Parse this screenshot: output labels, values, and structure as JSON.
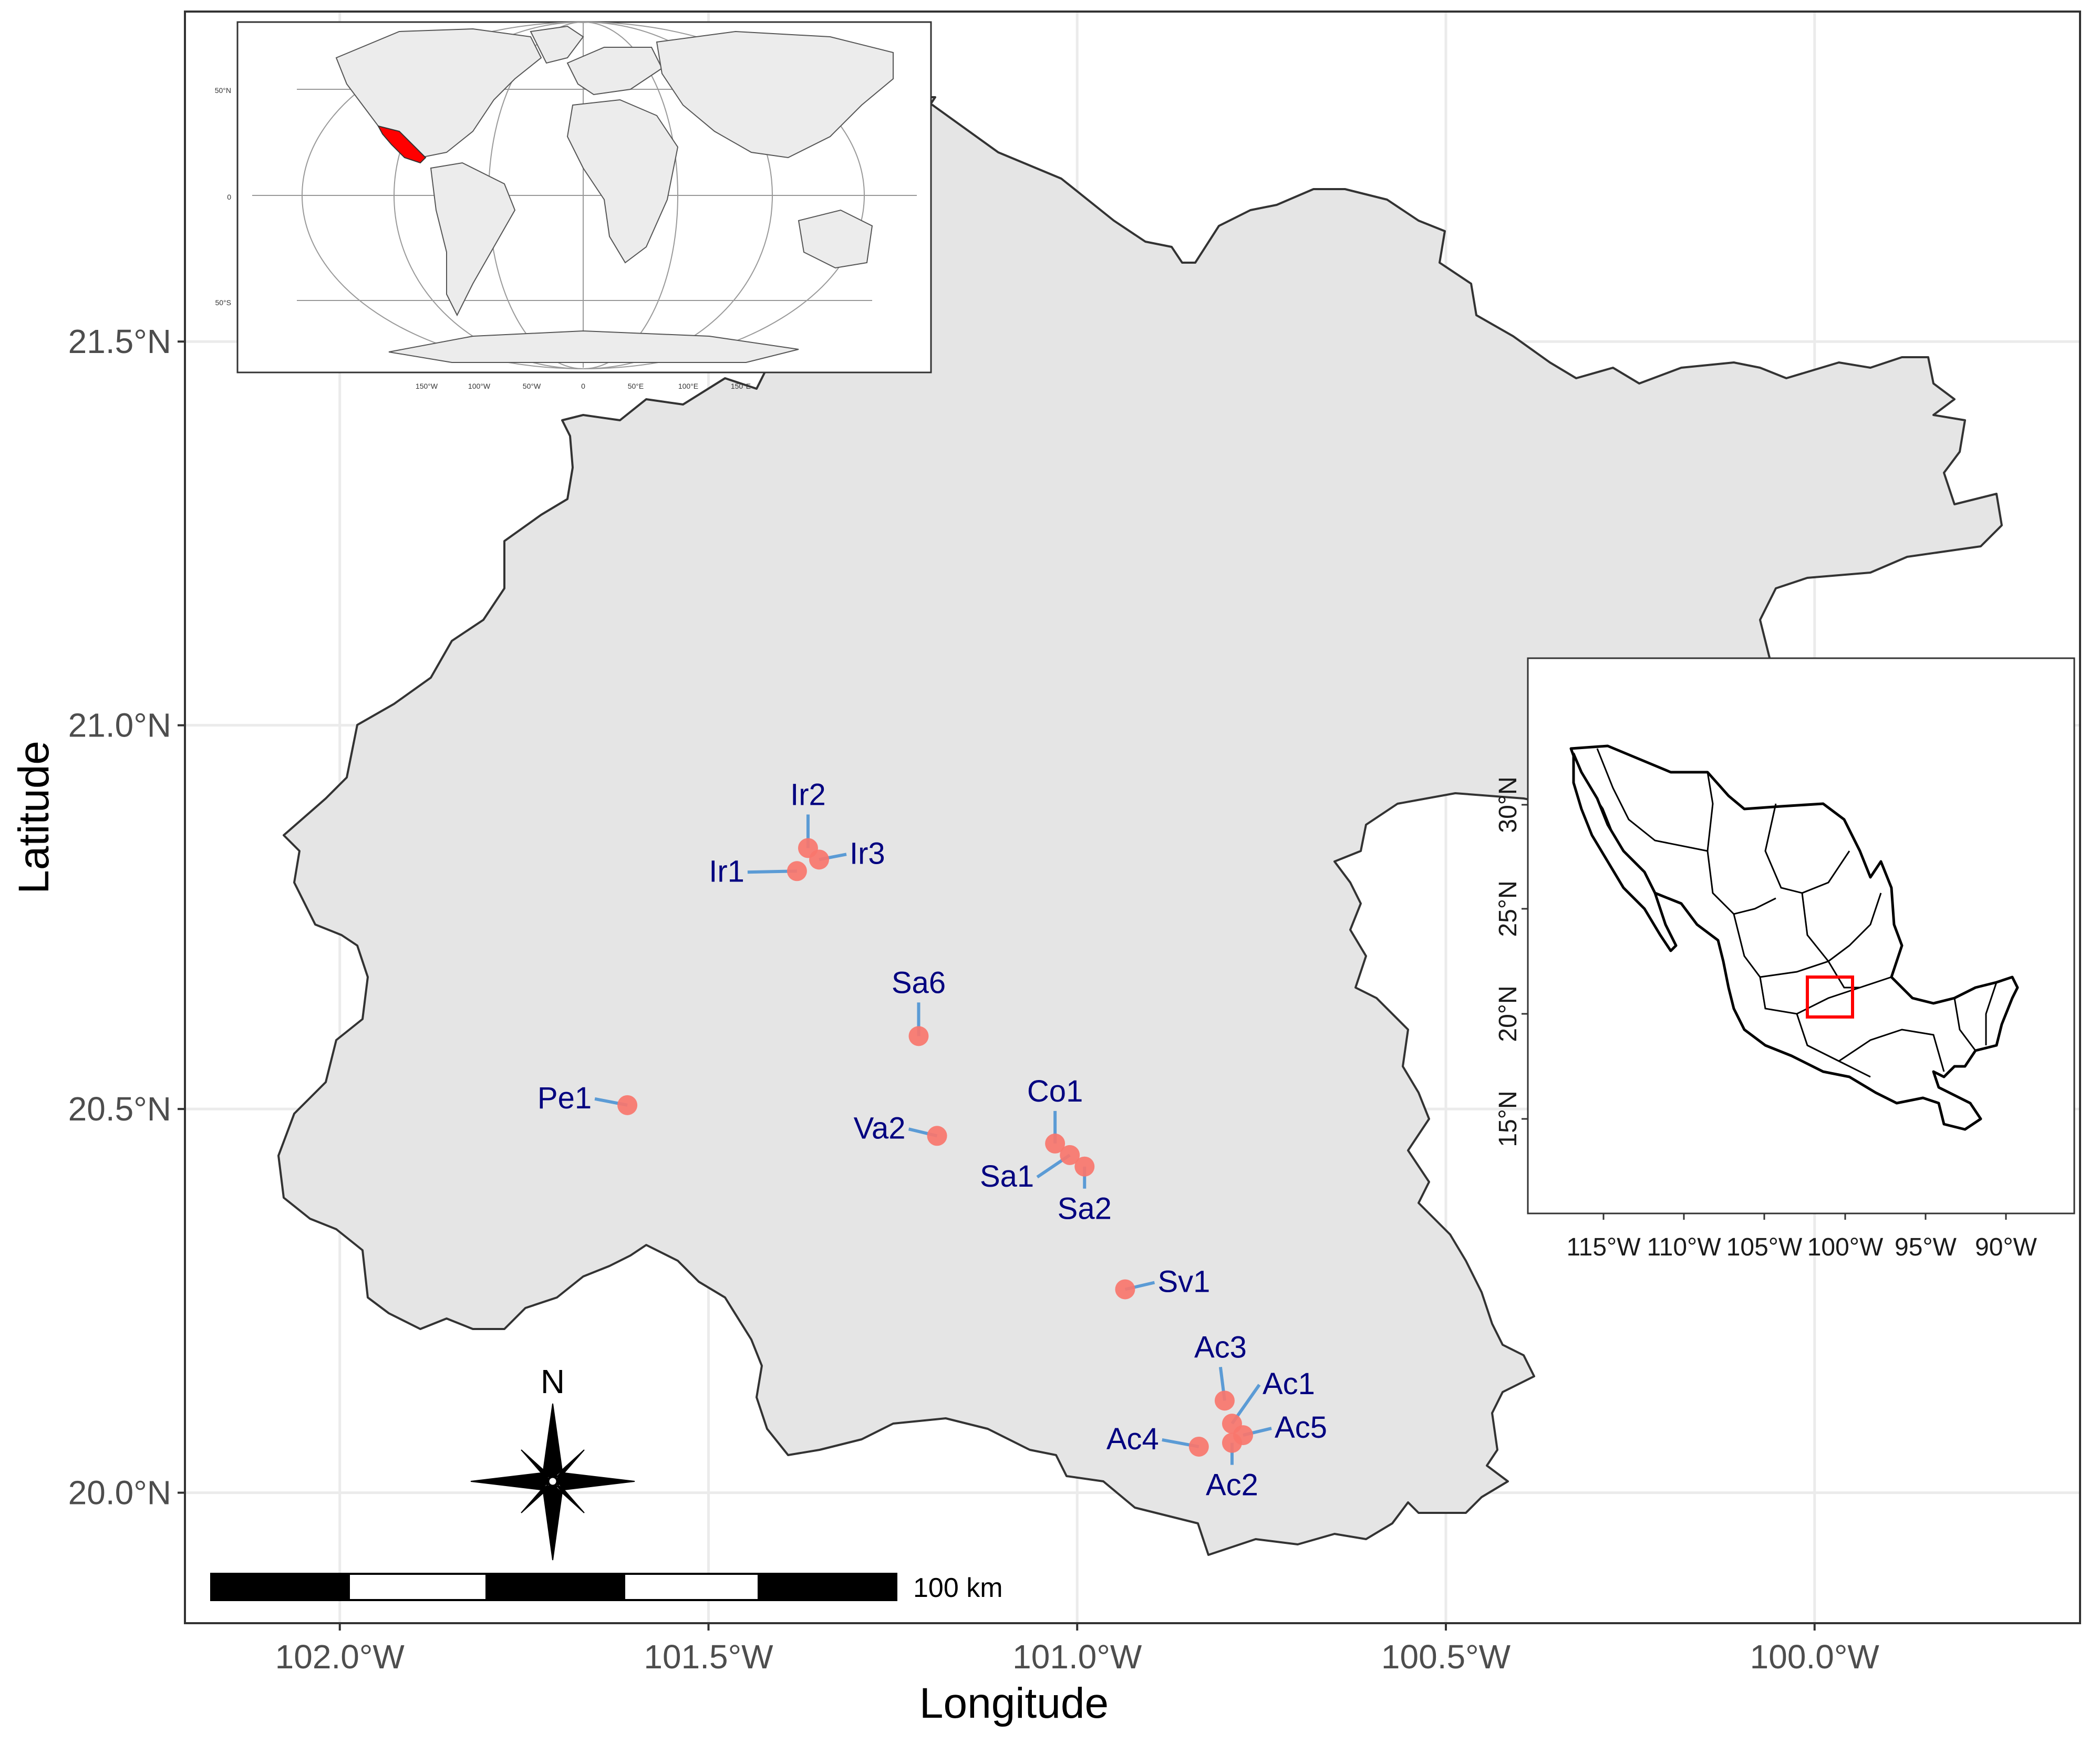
{
  "chart_data": {
    "type": "scatter",
    "xlabel": "Longitude",
    "ylabel": "Latitude",
    "xlim": [
      -102.21,
      -99.64
    ],
    "ylim": [
      19.83,
      21.93
    ],
    "x_ticks": [
      {
        "value": -102.0,
        "label": "102.0°W"
      },
      {
        "value": -101.5,
        "label": "101.5°W"
      },
      {
        "value": -101.0,
        "label": "101.0°W"
      },
      {
        "value": -100.5,
        "label": "100.5°W"
      },
      {
        "value": -100.0,
        "label": "100.0°W"
      }
    ],
    "y_ticks": [
      {
        "value": 20.0,
        "label": "20.0°N"
      },
      {
        "value": 20.5,
        "label": "20.5°N"
      },
      {
        "value": 21.0,
        "label": "21.0°N"
      },
      {
        "value": 21.5,
        "label": "21.5°N"
      }
    ],
    "grid": true,
    "points": [
      {
        "name": "Ir1",
        "lon": -101.38,
        "lat": 20.81
      },
      {
        "name": "Ir2",
        "lon": -101.365,
        "lat": 20.84
      },
      {
        "name": "Ir3",
        "lon": -101.35,
        "lat": 20.825
      },
      {
        "name": "Sa6",
        "lon": -101.215,
        "lat": 20.595
      },
      {
        "name": "Pe1",
        "lon": -101.61,
        "lat": 20.505
      },
      {
        "name": "Va2",
        "lon": -101.19,
        "lat": 20.465
      },
      {
        "name": "Co1",
        "lon": -101.03,
        "lat": 20.455
      },
      {
        "name": "Sa1",
        "lon": -101.01,
        "lat": 20.44
      },
      {
        "name": "Sa2",
        "lon": -100.99,
        "lat": 20.425
      },
      {
        "name": "Sv1",
        "lon": -100.935,
        "lat": 20.265
      },
      {
        "name": "Ac3",
        "lon": -100.8,
        "lat": 20.12
      },
      {
        "name": "Ac1",
        "lon": -100.79,
        "lat": 20.09
      },
      {
        "name": "Ac5",
        "lon": -100.775,
        "lat": 20.075
      },
      {
        "name": "Ac2",
        "lon": -100.79,
        "lat": 20.065
      },
      {
        "name": "Ac4",
        "lon": -100.835,
        "lat": 20.06
      }
    ],
    "point_color": "#f8766d",
    "label_color": "#000080",
    "leader_color": "#5b9bd5"
  },
  "map": {
    "state_fill": "#e5e5e5",
    "state_border": "#333333",
    "grid_color": "#ebebeb"
  },
  "world_inset": {
    "lat_labels": [
      "50°N",
      "0",
      "50°S"
    ],
    "lon_labels": [
      "150°W",
      "100°W",
      "50°W",
      "0",
      "50°E",
      "100°E",
      "150°E"
    ],
    "highlight_color": "#ff0000"
  },
  "mexico_inset": {
    "lat_labels": [
      "30°N",
      "25°N",
      "20°N",
      "15°N"
    ],
    "lon_labels": [
      "115°W",
      "110°W",
      "105°W",
      "100°W",
      "95°W",
      "90°W"
    ],
    "box_color": "#ff0000"
  },
  "north_arrow": {
    "label": "N"
  },
  "scale_bar": {
    "label": "100 km"
  }
}
